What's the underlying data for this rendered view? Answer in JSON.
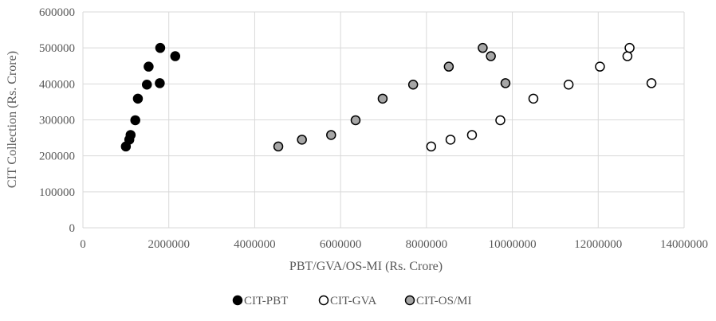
{
  "chart_data": {
    "type": "scatter",
    "title": "",
    "xlabel": "PBT/GVA/OS-MI (Rs. Crore)",
    "ylabel": "CIT Collection (Rs. Crore)",
    "xlim": [
      0,
      14000000
    ],
    "ylim": [
      0,
      600000
    ],
    "x_ticks": [
      "0",
      "2000000",
      "4000000",
      "6000000",
      "8000000",
      "10000000",
      "12000000",
      "14000000"
    ],
    "y_ticks": [
      "0",
      "100000",
      "200000",
      "300000",
      "400000",
      "500000",
      "600000"
    ],
    "grid": true,
    "legend_position": "bottom",
    "series": [
      {
        "name": "CIT-PBT",
        "fill": "#000000",
        "stroke": "#000000",
        "points": [
          {
            "x": 1000000,
            "y": 226000
          },
          {
            "x": 1080000,
            "y": 245000
          },
          {
            "x": 1110000,
            "y": 258000
          },
          {
            "x": 1220000,
            "y": 299000
          },
          {
            "x": 1280000,
            "y": 359000
          },
          {
            "x": 1490000,
            "y": 398000
          },
          {
            "x": 1530000,
            "y": 448000
          },
          {
            "x": 1790000,
            "y": 402000
          },
          {
            "x": 1800000,
            "y": 500000
          },
          {
            "x": 2150000,
            "y": 477000
          }
        ]
      },
      {
        "name": "CIT-GVA",
        "fill": "#ffffff",
        "stroke": "#000000",
        "points": [
          {
            "x": 8110000,
            "y": 226000
          },
          {
            "x": 8560000,
            "y": 245000
          },
          {
            "x": 9060000,
            "y": 258000
          },
          {
            "x": 9720000,
            "y": 299000
          },
          {
            "x": 10490000,
            "y": 359000
          },
          {
            "x": 11310000,
            "y": 398000
          },
          {
            "x": 12040000,
            "y": 448000
          },
          {
            "x": 12680000,
            "y": 477000
          },
          {
            "x": 12730000,
            "y": 500000
          },
          {
            "x": 13240000,
            "y": 402000
          }
        ]
      },
      {
        "name": "CIT-OS/MI",
        "fill": "#a6a6a6",
        "stroke": "#000000",
        "points": [
          {
            "x": 4550000,
            "y": 226000
          },
          {
            "x": 5100000,
            "y": 245000
          },
          {
            "x": 5780000,
            "y": 258000
          },
          {
            "x": 6350000,
            "y": 299000
          },
          {
            "x": 6980000,
            "y": 359000
          },
          {
            "x": 7690000,
            "y": 398000
          },
          {
            "x": 8520000,
            "y": 448000
          },
          {
            "x": 9310000,
            "y": 500000
          },
          {
            "x": 9500000,
            "y": 477000
          },
          {
            "x": 9840000,
            "y": 402000
          }
        ]
      }
    ]
  },
  "colors": {
    "gridline": "#d9d9d9",
    "axis_text": "#595959"
  }
}
